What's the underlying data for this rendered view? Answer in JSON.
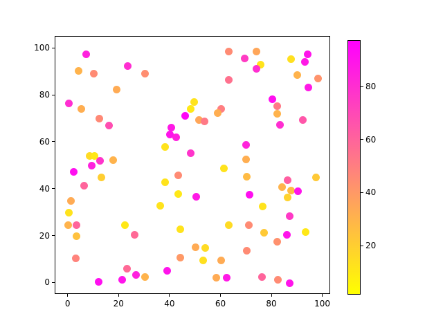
{
  "chart_data": {
    "type": "scatter",
    "title": "",
    "xlabel": "",
    "ylabel": "",
    "xlim": [
      -5.1,
      103.1
    ],
    "ylim": [
      -4.9,
      105.1
    ],
    "x_ticks": [
      "0",
      "20",
      "40",
      "60",
      "80",
      "100"
    ],
    "x_tick_values": [
      0,
      20,
      40,
      60,
      80,
      100
    ],
    "y_ticks": [
      "0",
      "20",
      "40",
      "60",
      "80",
      "100"
    ],
    "y_tick_values": [
      0,
      20,
      40,
      60,
      80,
      100
    ],
    "grid": false,
    "legend": "none",
    "marker_diameter_px": 11,
    "colormap": "spring_r",
    "colorbar": {
      "vmin": 1.5,
      "vmax": 97.5,
      "ticks": [
        "20",
        "40",
        "60",
        "80"
      ],
      "tick_values": [
        20,
        40,
        60,
        80
      ],
      "top_color": "#ff00ff",
      "bottom_color": "#ffff00"
    },
    "points": [
      {
        "x": 7.0,
        "y": 97.5,
        "c": 85
      },
      {
        "x": 4.1,
        "y": 90.4,
        "c": 30
      },
      {
        "x": 9.9,
        "y": 89.4,
        "c": 45
      },
      {
        "x": 23.3,
        "y": 92.6,
        "c": 80
      },
      {
        "x": 30.1,
        "y": 89.4,
        "c": 44
      },
      {
        "x": 19.0,
        "y": 82.4,
        "c": 33
      },
      {
        "x": 0.2,
        "y": 76.6,
        "c": 80
      },
      {
        "x": 5.0,
        "y": 74.3,
        "c": 32
      },
      {
        "x": 12.1,
        "y": 70.2,
        "c": 46
      },
      {
        "x": 16.0,
        "y": 67.3,
        "c": 68
      },
      {
        "x": 46.0,
        "y": 71.4,
        "c": 95
      },
      {
        "x": 40.5,
        "y": 66.4,
        "c": 88
      },
      {
        "x": 40.0,
        "y": 63.4,
        "c": 90
      },
      {
        "x": 42.3,
        "y": 62.1,
        "c": 85
      },
      {
        "x": 37.9,
        "y": 58.0,
        "c": 12
      },
      {
        "x": 8.3,
        "y": 54.1,
        "c": 15
      },
      {
        "x": 10.3,
        "y": 54.1,
        "c": 10
      },
      {
        "x": 12.4,
        "y": 52.3,
        "c": 78
      },
      {
        "x": 17.6,
        "y": 52.6,
        "c": 30
      },
      {
        "x": 9.2,
        "y": 50.1,
        "c": 85
      },
      {
        "x": 62.9,
        "y": 98.8,
        "c": 45
      },
      {
        "x": 74.0,
        "y": 98.8,
        "c": 35
      },
      {
        "x": 69.2,
        "y": 95.7,
        "c": 75
      },
      {
        "x": 93.9,
        "y": 97.7,
        "c": 90
      },
      {
        "x": 87.4,
        "y": 95.6,
        "c": 13
      },
      {
        "x": 93.0,
        "y": 94.4,
        "c": 88
      },
      {
        "x": 75.4,
        "y": 93.1,
        "c": 12
      },
      {
        "x": 74.0,
        "y": 91.4,
        "c": 80
      },
      {
        "x": 89.8,
        "y": 88.7,
        "c": 30
      },
      {
        "x": 98.2,
        "y": 87.3,
        "c": 42
      },
      {
        "x": 62.9,
        "y": 86.6,
        "c": 55
      },
      {
        "x": 94.2,
        "y": 83.4,
        "c": 88
      },
      {
        "x": 80.2,
        "y": 78.5,
        "c": 92
      },
      {
        "x": 49.3,
        "y": 77.2,
        "c": 12
      },
      {
        "x": 82.1,
        "y": 75.5,
        "c": 52
      },
      {
        "x": 48.1,
        "y": 74.3,
        "c": 10
      },
      {
        "x": 82.1,
        "y": 72.3,
        "c": 30
      },
      {
        "x": 60.0,
        "y": 74.4,
        "c": 50
      },
      {
        "x": 58.6,
        "y": 72.4,
        "c": 32
      },
      {
        "x": 51.4,
        "y": 69.5,
        "c": 35
      },
      {
        "x": 53.6,
        "y": 69.0,
        "c": 52
      },
      {
        "x": 83.0,
        "y": 67.5,
        "c": 80
      },
      {
        "x": 92.1,
        "y": 69.5,
        "c": 65
      },
      {
        "x": 69.9,
        "y": 59.0,
        "c": 84
      },
      {
        "x": 48.0,
        "y": 55.3,
        "c": 78
      },
      {
        "x": 69.7,
        "y": 52.9,
        "c": 32
      },
      {
        "x": 61.0,
        "y": 48.9,
        "c": 12
      },
      {
        "x": 2.0,
        "y": 47.4,
        "c": 92
      },
      {
        "x": 12.9,
        "y": 45.2,
        "c": 20
      },
      {
        "x": 6.1,
        "y": 41.5,
        "c": 60
      },
      {
        "x": 0.9,
        "y": 35.1,
        "c": 33
      },
      {
        "x": 0.2,
        "y": 30.0,
        "c": 12
      },
      {
        "x": -0.1,
        "y": 24.6,
        "c": 30
      },
      {
        "x": 3.1,
        "y": 24.6,
        "c": 60
      },
      {
        "x": 3.1,
        "y": 20.1,
        "c": 25
      },
      {
        "x": 2.9,
        "y": 10.6,
        "c": 48
      },
      {
        "x": 12.0,
        "y": 0.6,
        "c": 92
      },
      {
        "x": 21.2,
        "y": 1.5,
        "c": 90
      },
      {
        "x": 23.0,
        "y": 6.1,
        "c": 58
      },
      {
        "x": 26.5,
        "y": 3.4,
        "c": 85
      },
      {
        "x": 30.0,
        "y": 2.6,
        "c": 30
      },
      {
        "x": 38.9,
        "y": 5.3,
        "c": 90
      },
      {
        "x": 43.1,
        "y": 46.0,
        "c": 45
      },
      {
        "x": 37.9,
        "y": 42.9,
        "c": 12
      },
      {
        "x": 43.1,
        "y": 38.0,
        "c": 10
      },
      {
        "x": 36.1,
        "y": 32.9,
        "c": 12
      },
      {
        "x": 22.1,
        "y": 24.6,
        "c": 10
      },
      {
        "x": 26.0,
        "y": 20.7,
        "c": 58
      },
      {
        "x": 43.9,
        "y": 23.1,
        "c": 12
      },
      {
        "x": 43.9,
        "y": 10.8,
        "c": 40
      },
      {
        "x": 70.0,
        "y": 45.4,
        "c": 27
      },
      {
        "x": 97.2,
        "y": 45.0,
        "c": 22
      },
      {
        "x": 86.2,
        "y": 43.9,
        "c": 62
      },
      {
        "x": 83.8,
        "y": 41.0,
        "c": 30
      },
      {
        "x": 87.6,
        "y": 39.6,
        "c": 27
      },
      {
        "x": 90.1,
        "y": 39.3,
        "c": 90
      },
      {
        "x": 50.3,
        "y": 36.9,
        "c": 88
      },
      {
        "x": 71.1,
        "y": 37.6,
        "c": 92
      },
      {
        "x": 86.2,
        "y": 36.4,
        "c": 18
      },
      {
        "x": 76.3,
        "y": 32.7,
        "c": 12
      },
      {
        "x": 87.0,
        "y": 28.7,
        "c": 76
      },
      {
        "x": 62.9,
        "y": 24.6,
        "c": 15
      },
      {
        "x": 71.0,
        "y": 24.6,
        "c": 45
      },
      {
        "x": 76.9,
        "y": 21.6,
        "c": 22
      },
      {
        "x": 85.9,
        "y": 20.6,
        "c": 90
      },
      {
        "x": 93.2,
        "y": 21.9,
        "c": 10
      },
      {
        "x": 82.0,
        "y": 17.7,
        "c": 43
      },
      {
        "x": 50.0,
        "y": 15.4,
        "c": 33
      },
      {
        "x": 53.8,
        "y": 15.0,
        "c": 15
      },
      {
        "x": 70.1,
        "y": 13.9,
        "c": 45
      },
      {
        "x": 52.9,
        "y": 9.8,
        "c": 13
      },
      {
        "x": 60.0,
        "y": 9.6,
        "c": 33
      },
      {
        "x": 58.2,
        "y": 2.2,
        "c": 33
      },
      {
        "x": 62.2,
        "y": 2.4,
        "c": 88
      },
      {
        "x": 76.1,
        "y": 2.6,
        "c": 60
      },
      {
        "x": 82.2,
        "y": 1.4,
        "c": 45
      },
      {
        "x": 87.0,
        "y": 0.1,
        "c": 90
      }
    ]
  }
}
